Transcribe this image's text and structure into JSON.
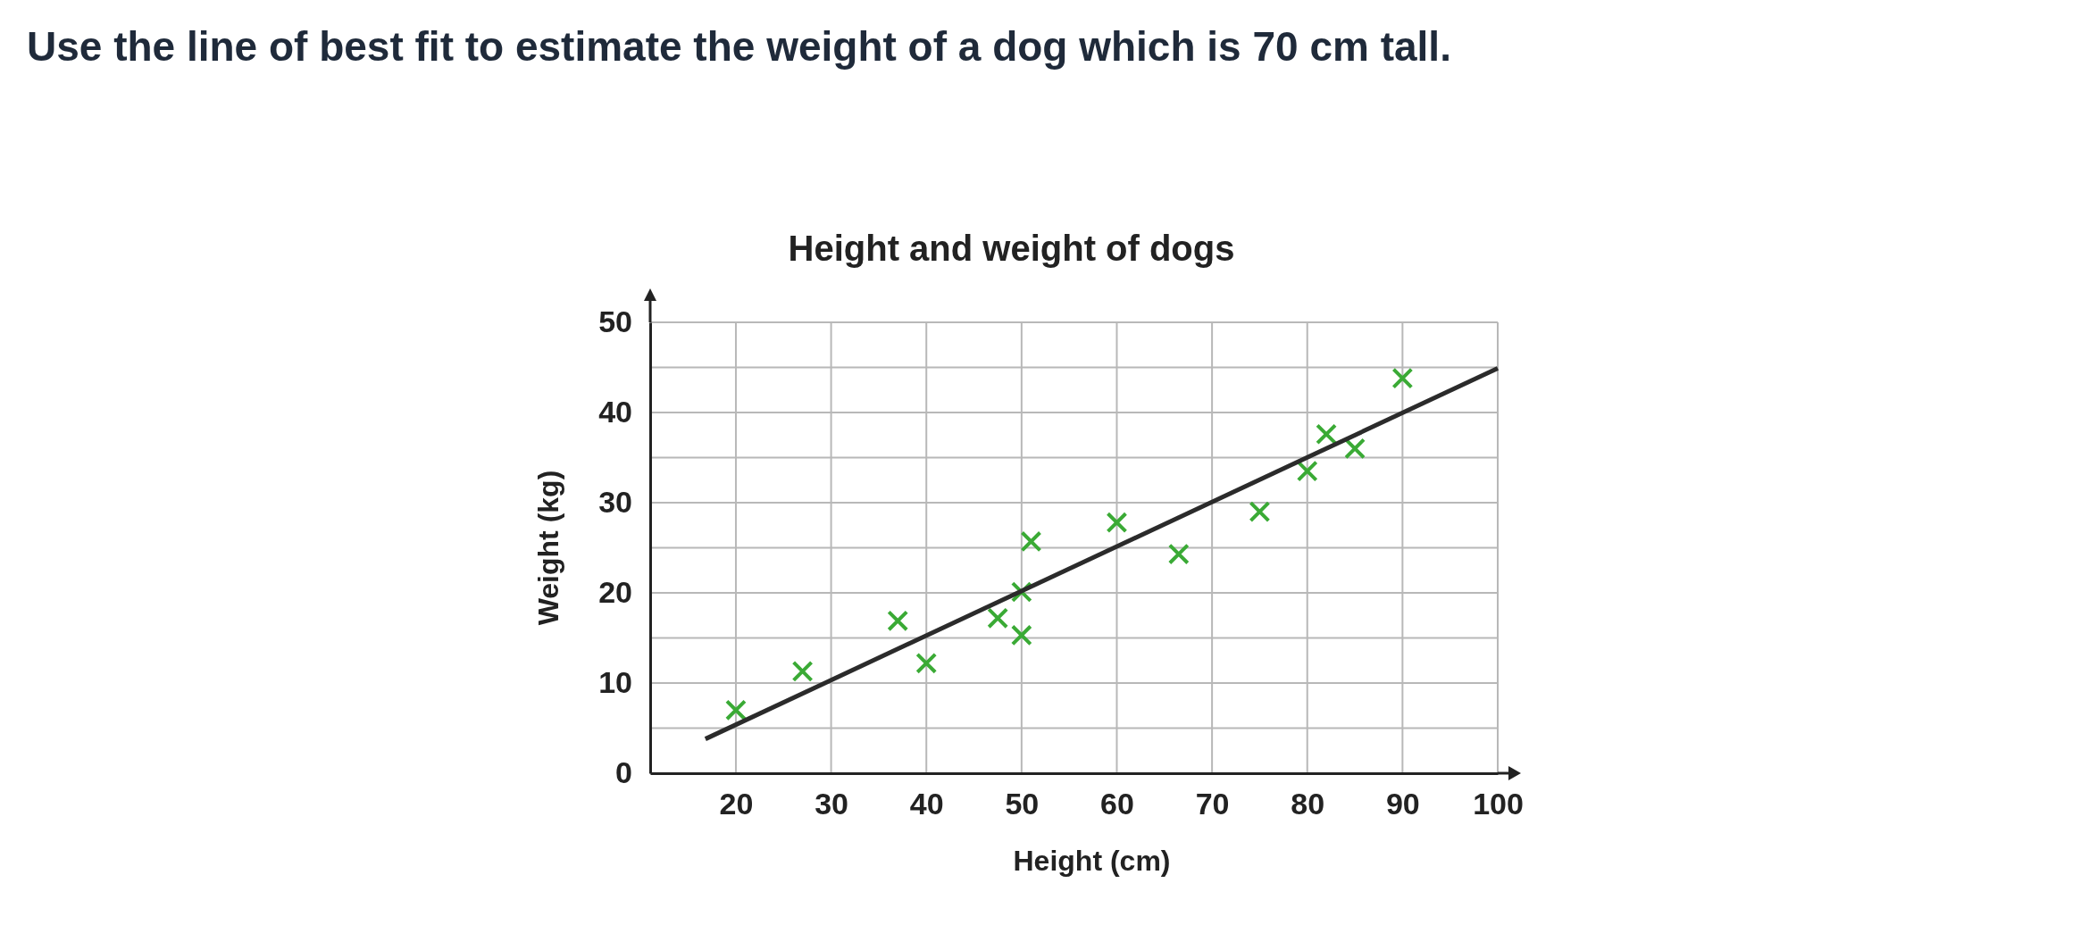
{
  "chart_data": {
    "type": "scatter",
    "title": "Height and weight of dogs",
    "annotations": [
      "Use the line of best fit to estimate the weight of a dog which is 70 cm tall."
    ],
    "xlabel": "Height (cm)",
    "ylabel": "Weight (kg)",
    "xlim": [
      11,
      100
    ],
    "xticks": [
      20,
      30,
      40,
      50,
      60,
      70,
      80,
      90,
      100
    ],
    "ylim": [
      0,
      50
    ],
    "yticks": [
      0,
      {
        "value": 5,
        "label": null
      },
      10,
      {
        "value": 15,
        "label": null
      },
      20,
      {
        "value": 25,
        "label": null
      },
      30,
      {
        "value": 35,
        "label": null
      },
      40,
      {
        "value": 45,
        "label": null
      },
      50
    ],
    "grid": true,
    "series": [
      {
        "marker": "cross",
        "color": "#3aaa35",
        "x": [
          20,
          27,
          37,
          40,
          47.5,
          50,
          50,
          51,
          60,
          66.5,
          75,
          80,
          82,
          85,
          90
        ],
        "values": [
          7,
          11.3,
          16.9,
          12.2,
          17.2,
          15.3,
          20.1,
          25.7,
          27.8,
          24.3,
          29,
          33.5,
          37.6,
          36,
          43.8
        ]
      },
      {
        "type": "line",
        "color": "#2b2b2b",
        "x": [
          16.8,
          100
        ],
        "values": [
          3.8,
          44.9
        ]
      }
    ]
  }
}
